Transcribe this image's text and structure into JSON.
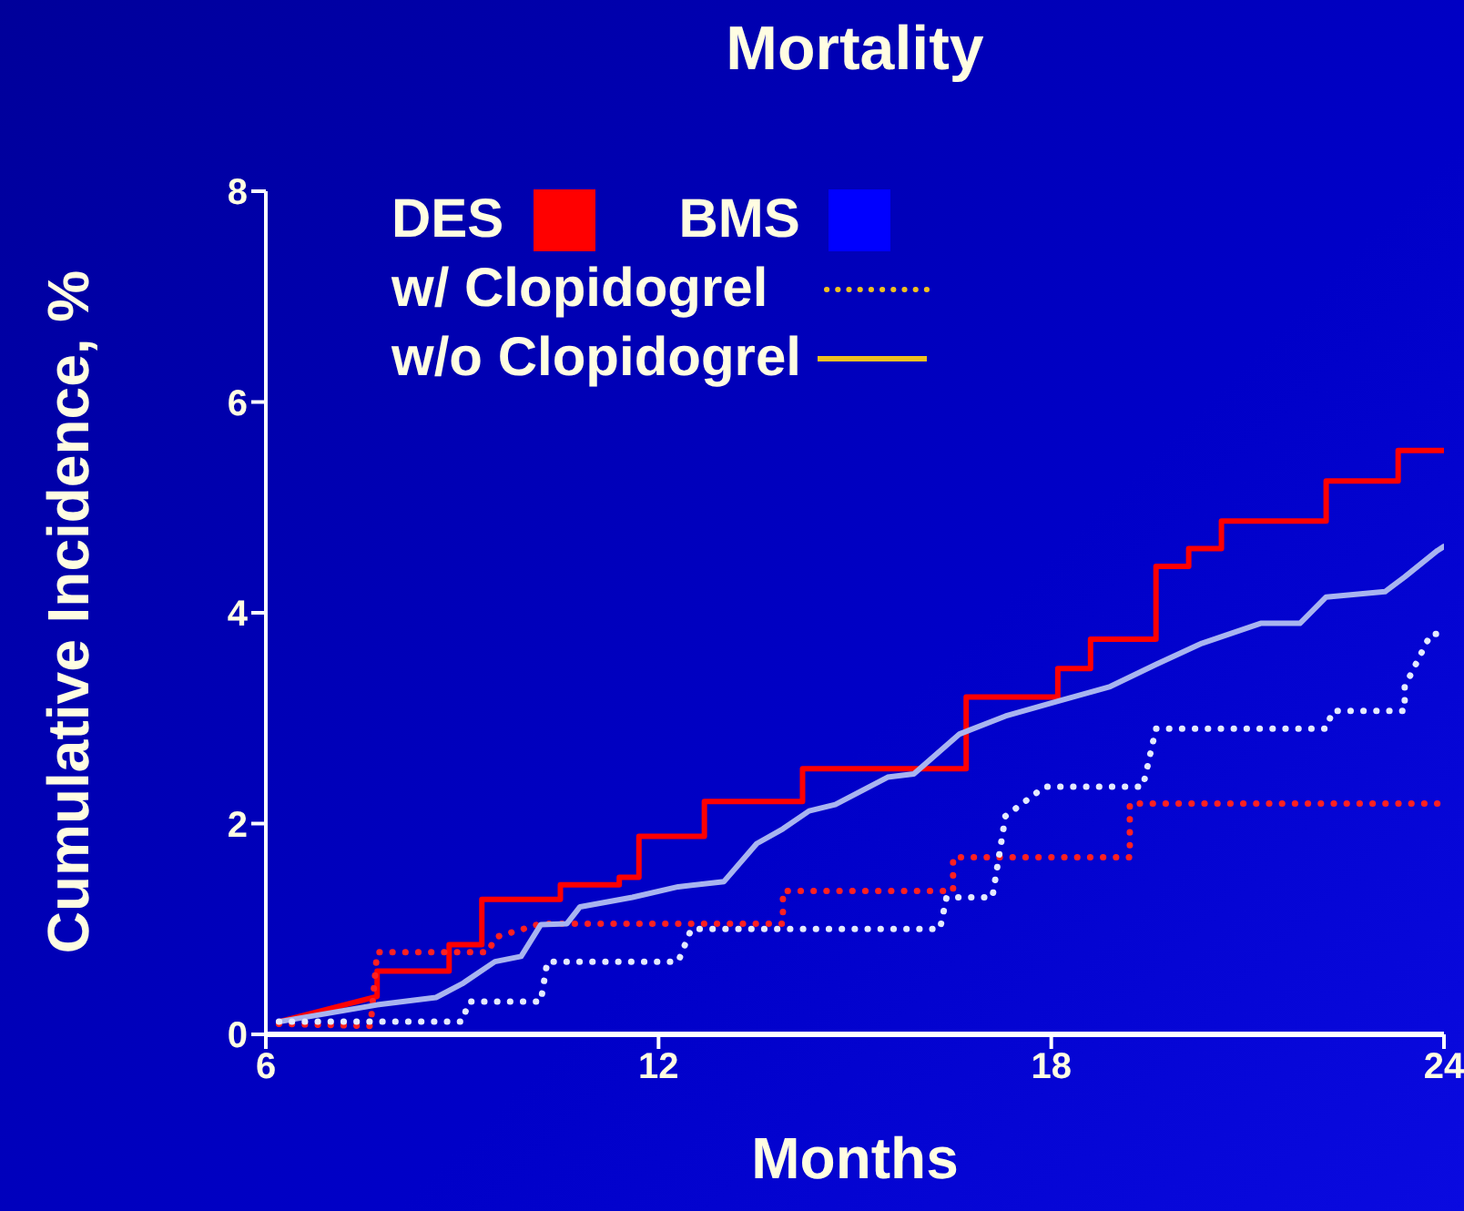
{
  "chart_data": {
    "type": "line",
    "title": "Mortality",
    "xlabel": "Months",
    "ylabel": "Cumulative Incidence, %",
    "xlim": [
      6,
      24
    ],
    "xticks": [
      6,
      12,
      18,
      24
    ],
    "ylim": [
      0,
      8
    ],
    "yticks": [
      0,
      2,
      4,
      6,
      8
    ],
    "grid": false,
    "marker": "none",
    "annotations": [
      "DES",
      "BMS",
      "w/ Clopidogrel",
      "w/o Clopidogrel"
    ],
    "series": [
      {
        "color": "#ff0000",
        "line_style": "solid",
        "x": [
          6.2,
          7.7,
          7.7,
          8.8,
          8.8,
          9.3,
          9.3,
          10.5,
          10.5,
          11.4,
          11.4,
          11.7,
          11.7,
          12.7,
          12.7,
          14.2,
          14.2,
          16.7,
          16.7,
          18.1,
          18.1,
          18.6,
          18.6,
          19.6,
          19.6,
          20.1,
          20.1,
          20.6,
          20.6,
          22.2,
          22.2,
          23.3,
          23.3,
          24
        ],
        "values": [
          0.12,
          0.36,
          0.6,
          0.6,
          0.85,
          0.85,
          1.28,
          1.28,
          1.42,
          1.42,
          1.49,
          1.49,
          1.88,
          1.88,
          2.21,
          2.21,
          2.52,
          2.52,
          3.2,
          3.2,
          3.47,
          3.47,
          3.75,
          3.75,
          4.44,
          4.44,
          4.61,
          4.61,
          4.87,
          4.87,
          5.25,
          5.25,
          5.54,
          5.54
        ]
      },
      {
        "color": "#ff2020",
        "line_style": "dotted",
        "x": [
          6.2,
          7.6,
          7.7,
          9.4,
          9.5,
          10.2,
          13.9,
          13.9,
          16.5,
          16.5,
          19.2,
          19.2,
          24
        ],
        "values": [
          0.1,
          0.08,
          0.78,
          0.78,
          0.92,
          1.05,
          1.05,
          1.36,
          1.36,
          1.68,
          1.68,
          2.19,
          2.19
        ]
      },
      {
        "color": "#a8b4f0",
        "line_style": "solid",
        "x": [
          6.2,
          7.7,
          8.6,
          9.0,
          9.5,
          9.9,
          10.2,
          10.6,
          10.8,
          11.6,
          12.3,
          13.0,
          13.5,
          13.9,
          14.3,
          14.7,
          15.5,
          15.9,
          16.6,
          17.3,
          18.1,
          18.9,
          19.6,
          20.3,
          21.2,
          21.8,
          22.2,
          23.1,
          23.4,
          23.9,
          24
        ],
        "values": [
          0.12,
          0.28,
          0.35,
          0.48,
          0.69,
          0.74,
          1.04,
          1.05,
          1.21,
          1.3,
          1.4,
          1.45,
          1.81,
          1.95,
          2.12,
          2.18,
          2.44,
          2.47,
          2.85,
          3.02,
          3.16,
          3.3,
          3.51,
          3.71,
          3.9,
          3.9,
          4.15,
          4.2,
          4.34,
          4.59,
          4.63
        ]
      },
      {
        "color": "#e4eaff",
        "line_style": "dotted",
        "x": [
          6.2,
          9.0,
          9.1,
          10.2,
          10.3,
          12.3,
          12.5,
          16.3,
          16.4,
          17.1,
          17.3,
          17.9,
          19.4,
          19.6,
          22.2,
          22.3,
          23.4,
          23.4,
          23.8,
          24
        ],
        "values": [
          0.12,
          0.12,
          0.31,
          0.31,
          0.69,
          0.69,
          1.0,
          1.0,
          1.3,
          1.3,
          2.07,
          2.35,
          2.35,
          2.9,
          2.9,
          3.07,
          3.07,
          3.3,
          3.8,
          3.8
        ]
      }
    ]
  }
}
